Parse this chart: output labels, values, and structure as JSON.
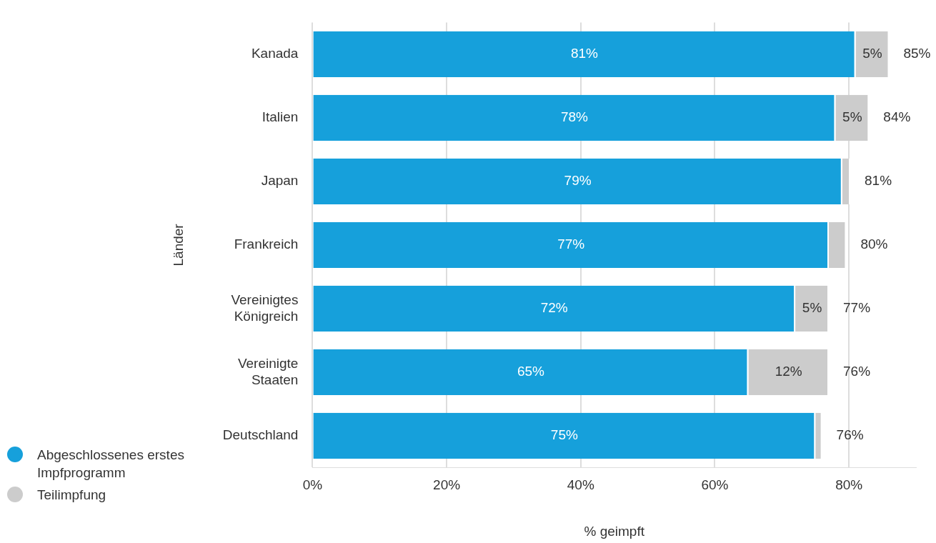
{
  "chart_data": {
    "type": "bar",
    "orientation": "horizontal",
    "stacked": true,
    "xlabel": "% geimpft",
    "ylabel": "Länder",
    "categories": [
      "Kanada",
      "Italien",
      "Japan",
      "Frankreich",
      "Vereinigtes Königreich",
      "Vereinigte Staaten",
      "Deutschland"
    ],
    "series": [
      {
        "name": "Abgeschlossenes erstes Impfprogramm",
        "color": "#16a0db",
        "values": [
          81,
          78,
          79,
          77,
          72,
          65,
          75
        ],
        "value_labels": [
          "81%",
          "78%",
          "79%",
          "77%",
          "72%",
          "65%",
          "75%"
        ]
      },
      {
        "name": "Teilimpfung",
        "color": "#cccccc",
        "values": [
          5,
          5,
          1.2,
          2.6,
          5,
          12,
          1
        ],
        "value_labels": [
          "5%",
          "5%",
          null,
          null,
          "5%",
          "12%",
          null
        ]
      }
    ],
    "totals": [
      "85%",
      "84%",
      "81%",
      "80%",
      "77%",
      "76%",
      "76%"
    ],
    "xlim": [
      0,
      90
    ],
    "xticks": [
      {
        "value": 0,
        "label": "0%"
      },
      {
        "value": 20,
        "label": "20%"
      },
      {
        "value": 40,
        "label": "40%"
      },
      {
        "value": 60,
        "label": "60%"
      },
      {
        "value": 80,
        "label": "80%"
      }
    ],
    "grid": "x",
    "legend": "bottom left"
  }
}
